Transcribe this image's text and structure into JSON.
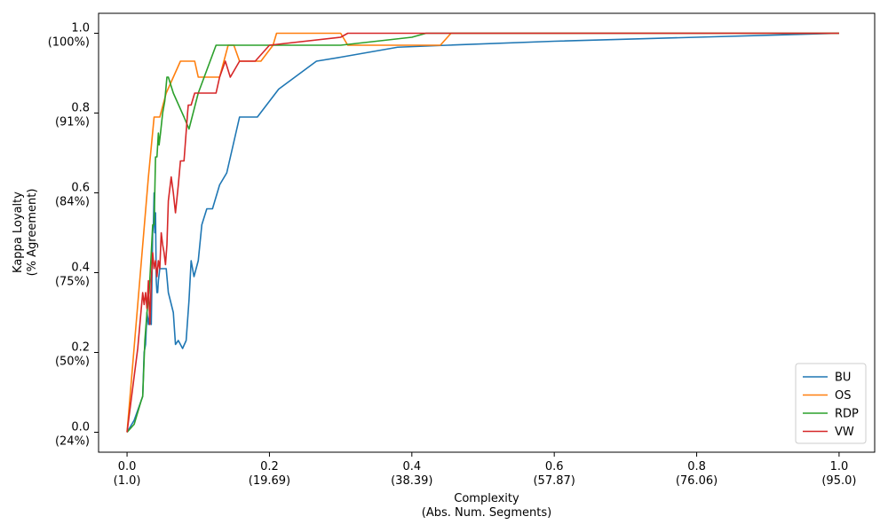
{
  "chart_data": {
    "type": "line",
    "xlabel": "Complexity",
    "xlabel_sub": "(Abs. Num. Segments)",
    "ylabel": "Kappa Loyalty",
    "ylabel_sub": "(% Agreement)",
    "xlim": [
      -0.04,
      1.05
    ],
    "ylim": [
      -0.05,
      1.05
    ],
    "x_ticks": [
      {
        "value": 0.0,
        "label": "0.0",
        "sub": "(1.0)"
      },
      {
        "value": 0.2,
        "label": "0.2",
        "sub": "(19.69)"
      },
      {
        "value": 0.4,
        "label": "0.4",
        "sub": "(38.39)"
      },
      {
        "value": 0.6,
        "label": "0.6",
        "sub": "(57.87)"
      },
      {
        "value": 0.8,
        "label": "0.8",
        "sub": "(76.06)"
      },
      {
        "value": 1.0,
        "label": "1.0",
        "sub": "(95.0)"
      }
    ],
    "y_ticks": [
      {
        "value": 0.0,
        "label": "0.0",
        "sub": "(24%)"
      },
      {
        "value": 0.2,
        "label": "0.2",
        "sub": "(50%)"
      },
      {
        "value": 0.4,
        "label": "0.4",
        "sub": "(75%)"
      },
      {
        "value": 0.6,
        "label": "0.6",
        "sub": "(84%)"
      },
      {
        "value": 0.8,
        "label": "0.8",
        "sub": "(91%)"
      },
      {
        "value": 1.0,
        "label": "1.0",
        "sub": "(100%)"
      }
    ],
    "grid": false,
    "legend": "lower-right",
    "series": [
      {
        "name": "BU",
        "color": "#1f77b4",
        "points": [
          [
            0.0,
            0.0
          ],
          [
            0.01,
            0.03
          ],
          [
            0.02,
            0.08
          ],
          [
            0.022,
            0.09
          ],
          [
            0.024,
            0.2
          ],
          [
            0.026,
            0.22
          ],
          [
            0.028,
            0.3
          ],
          [
            0.03,
            0.27
          ],
          [
            0.032,
            0.3
          ],
          [
            0.034,
            0.27
          ],
          [
            0.036,
            0.5
          ],
          [
            0.037,
            0.52
          ],
          [
            0.038,
            0.6
          ],
          [
            0.039,
            0.5
          ],
          [
            0.04,
            0.55
          ],
          [
            0.041,
            0.38
          ],
          [
            0.042,
            0.35
          ],
          [
            0.043,
            0.35
          ],
          [
            0.044,
            0.38
          ],
          [
            0.046,
            0.41
          ],
          [
            0.05,
            0.41
          ],
          [
            0.055,
            0.41
          ],
          [
            0.058,
            0.35
          ],
          [
            0.065,
            0.3
          ],
          [
            0.068,
            0.22
          ],
          [
            0.072,
            0.23
          ],
          [
            0.078,
            0.21
          ],
          [
            0.083,
            0.23
          ],
          [
            0.087,
            0.33
          ],
          [
            0.09,
            0.43
          ],
          [
            0.094,
            0.39
          ],
          [
            0.1,
            0.43
          ],
          [
            0.105,
            0.52
          ],
          [
            0.112,
            0.56
          ],
          [
            0.12,
            0.56
          ],
          [
            0.13,
            0.62
          ],
          [
            0.14,
            0.65
          ],
          [
            0.158,
            0.79
          ],
          [
            0.183,
            0.79
          ],
          [
            0.213,
            0.86
          ],
          [
            0.266,
            0.93
          ],
          [
            0.3,
            0.94
          ],
          [
            0.38,
            0.965
          ],
          [
            0.45,
            0.97
          ],
          [
            0.6,
            0.98
          ],
          [
            0.8,
            0.99
          ],
          [
            1.0,
            1.0
          ]
        ]
      },
      {
        "name": "OS",
        "color": "#ff7f0e",
        "points": [
          [
            0.0,
            0.0
          ],
          [
            0.03,
            0.64
          ],
          [
            0.038,
            0.79
          ],
          [
            0.046,
            0.79
          ],
          [
            0.055,
            0.85
          ],
          [
            0.065,
            0.89
          ],
          [
            0.075,
            0.93
          ],
          [
            0.095,
            0.93
          ],
          [
            0.1,
            0.89
          ],
          [
            0.13,
            0.89
          ],
          [
            0.142,
            0.97
          ],
          [
            0.15,
            0.97
          ],
          [
            0.158,
            0.93
          ],
          [
            0.18,
            0.93
          ],
          [
            0.188,
            0.93
          ],
          [
            0.205,
            0.97
          ],
          [
            0.21,
            1.0
          ],
          [
            0.3,
            1.0
          ],
          [
            0.31,
            0.97
          ],
          [
            0.44,
            0.97
          ],
          [
            0.455,
            1.0
          ],
          [
            1.0,
            1.0
          ]
        ]
      },
      {
        "name": "RDP",
        "color": "#2ca02c",
        "points": [
          [
            0.0,
            0.0
          ],
          [
            0.01,
            0.02
          ],
          [
            0.02,
            0.08
          ],
          [
            0.022,
            0.09
          ],
          [
            0.025,
            0.23
          ],
          [
            0.028,
            0.3
          ],
          [
            0.031,
            0.35
          ],
          [
            0.034,
            0.45
          ],
          [
            0.036,
            0.52
          ],
          [
            0.038,
            0.52
          ],
          [
            0.04,
            0.69
          ],
          [
            0.042,
            0.69
          ],
          [
            0.044,
            0.75
          ],
          [
            0.045,
            0.72
          ],
          [
            0.047,
            0.75
          ],
          [
            0.05,
            0.8
          ],
          [
            0.053,
            0.83
          ],
          [
            0.056,
            0.89
          ],
          [
            0.058,
            0.89
          ],
          [
            0.065,
            0.85
          ],
          [
            0.08,
            0.79
          ],
          [
            0.087,
            0.76
          ],
          [
            0.1,
            0.85
          ],
          [
            0.125,
            0.97
          ],
          [
            0.3,
            0.97
          ],
          [
            0.4,
            0.99
          ],
          [
            0.42,
            1.0
          ],
          [
            1.0,
            1.0
          ]
        ]
      },
      {
        "name": "VW",
        "color": "#d62728",
        "points": [
          [
            0.0,
            0.0
          ],
          [
            0.015,
            0.21
          ],
          [
            0.022,
            0.35
          ],
          [
            0.024,
            0.32
          ],
          [
            0.026,
            0.35
          ],
          [
            0.028,
            0.31
          ],
          [
            0.03,
            0.38
          ],
          [
            0.032,
            0.27
          ],
          [
            0.034,
            0.38
          ],
          [
            0.036,
            0.45
          ],
          [
            0.038,
            0.41
          ],
          [
            0.04,
            0.43
          ],
          [
            0.042,
            0.39
          ],
          [
            0.044,
            0.43
          ],
          [
            0.046,
            0.41
          ],
          [
            0.048,
            0.5
          ],
          [
            0.05,
            0.47
          ],
          [
            0.052,
            0.45
          ],
          [
            0.054,
            0.42
          ],
          [
            0.056,
            0.47
          ],
          [
            0.058,
            0.58
          ],
          [
            0.062,
            0.64
          ],
          [
            0.065,
            0.6
          ],
          [
            0.068,
            0.55
          ],
          [
            0.072,
            0.62
          ],
          [
            0.075,
            0.68
          ],
          [
            0.08,
            0.68
          ],
          [
            0.085,
            0.8
          ],
          [
            0.086,
            0.82
          ],
          [
            0.09,
            0.82
          ],
          [
            0.095,
            0.85
          ],
          [
            0.125,
            0.85
          ],
          [
            0.13,
            0.89
          ],
          [
            0.138,
            0.93
          ],
          [
            0.145,
            0.89
          ],
          [
            0.158,
            0.93
          ],
          [
            0.18,
            0.93
          ],
          [
            0.2,
            0.97
          ],
          [
            0.3,
            0.99
          ],
          [
            0.31,
            1.0
          ],
          [
            1.0,
            1.0
          ]
        ]
      }
    ]
  }
}
